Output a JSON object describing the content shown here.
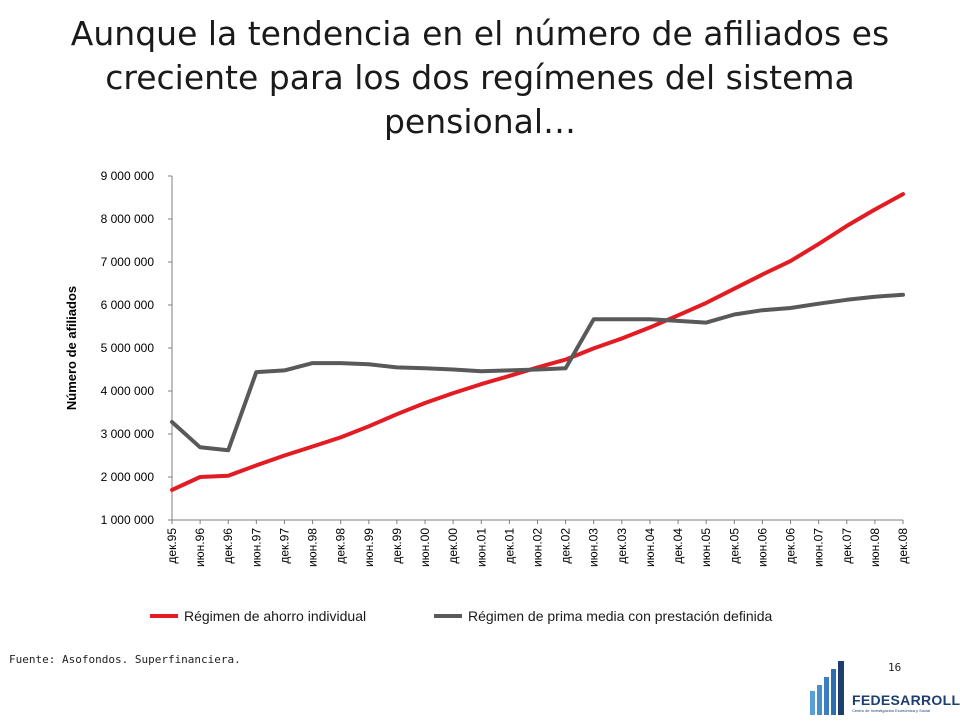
{
  "title": "Aunque la tendencia en el número de afiliados es creciente para los dos regímenes del sistema pensional…",
  "source": "Fuente: Asofondos. Superfinanciera.",
  "page_number": "16",
  "logo": {
    "name": "FEDESARROLLO",
    "tagline": "Centro de Investigación Económica y Social",
    "color": "#1d3f6e"
  },
  "colors": {
    "series_1": "#e31b23",
    "series_2": "#595959",
    "axis": "#7f7f7f"
  },
  "chart_data": {
    "type": "line",
    "title": "",
    "xlabel": "",
    "ylabel": "Número de afiliados",
    "ylim": [
      1000000,
      9000000
    ],
    "yticks": [
      1000000,
      2000000,
      3000000,
      4000000,
      5000000,
      6000000,
      7000000,
      8000000,
      9000000
    ],
    "ytick_labels": [
      "1 000 000",
      "2 000 000",
      "3 000 000",
      "4 000 000",
      "5 000 000",
      "6 000 000",
      "7 000 000",
      "8 000 000",
      "9 000 000"
    ],
    "grid": false,
    "legend": "bottom",
    "categories": [
      "дек.95",
      "июн.96",
      "дек.96",
      "июн.97",
      "дек.97",
      "июн.98",
      "дек.98",
      "июн.99",
      "дек.99",
      "июн.00",
      "дек.00",
      "июн.01",
      "дек.01",
      "июн.02",
      "дек.02",
      "июн.03",
      "дек.03",
      "июн.04",
      "дек.04",
      "июн.05",
      "дек.05",
      "июн.06",
      "дек.06",
      "июн.07",
      "дек.07",
      "июн.08",
      "дек.08"
    ],
    "series": [
      {
        "name": "Régimen de ahorro individual",
        "color": "#e31b23",
        "values": [
          1700000,
          2000000,
          2030000,
          2270000,
          2500000,
          2710000,
          2920000,
          3180000,
          3460000,
          3720000,
          3950000,
          4160000,
          4350000,
          4550000,
          4730000,
          4990000,
          5220000,
          5480000,
          5760000,
          6050000,
          6380000,
          6710000,
          7020000,
          7420000,
          7840000,
          8220000,
          8580000
        ]
      },
      {
        "name": "Régimen de prima media con prestación definida",
        "color": "#595959",
        "values": [
          3280000,
          2690000,
          2620000,
          4440000,
          4480000,
          4650000,
          4650000,
          4620000,
          4550000,
          4530000,
          4500000,
          4460000,
          4480000,
          4500000,
          4530000,
          5670000,
          5670000,
          5670000,
          5630000,
          5590000,
          5780000,
          5880000,
          5930000,
          6030000,
          6120000,
          6190000,
          6240000
        ]
      }
    ]
  }
}
